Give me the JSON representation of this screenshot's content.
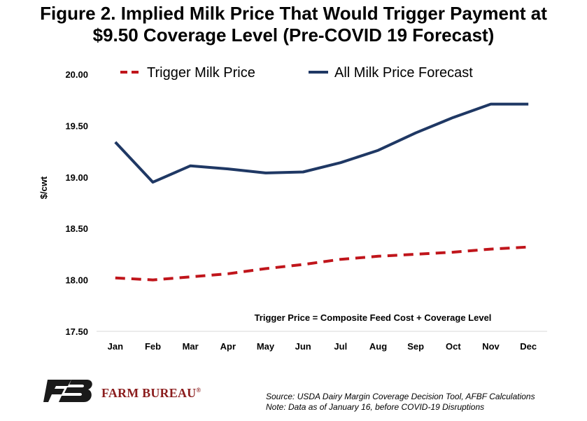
{
  "title_lines": [
    "Figure 2. Implied Milk Price That Would Trigger Payment at",
    "$9.50 Coverage Level (Pre-COVID 19 Forecast)"
  ],
  "chart_data": {
    "type": "line",
    "title": "Figure 2. Implied Milk Price That Would Trigger Payment at $9.50 Coverage Level (Pre-COVID 19 Forecast)",
    "categories": [
      "Jan",
      "Feb",
      "Mar",
      "Apr",
      "May",
      "Jun",
      "Jul",
      "Aug",
      "Sep",
      "Oct",
      "Nov",
      "Dec"
    ],
    "series": [
      {
        "name": "Trigger Milk Price",
        "color": "#c0151b",
        "style": "dashed",
        "values": [
          18.02,
          18.0,
          18.03,
          18.06,
          18.11,
          18.15,
          18.2,
          18.23,
          18.25,
          18.27,
          18.3,
          18.32
        ]
      },
      {
        "name": "All Milk Price Forecast",
        "color": "#1f3864",
        "style": "solid",
        "values": [
          19.34,
          18.95,
          19.11,
          19.08,
          19.04,
          19.05,
          19.14,
          19.26,
          19.43,
          19.58,
          19.71,
          19.71
        ]
      }
    ],
    "xlabel": "",
    "ylabel": "$/cwt",
    "ylim": [
      17.5,
      20.0
    ],
    "yticks": [
      "20.00",
      "19.50",
      "19.00",
      "18.50",
      "18.00",
      "17.50"
    ],
    "ytick_values": [
      20.0,
      19.5,
      19.0,
      18.5,
      18.0,
      17.5
    ],
    "grid": false,
    "legend_position": "top",
    "annotation": "Trigger Price = Composite Feed Cost + Coverage Level"
  },
  "source_lines": [
    "Source: USDA Dairy Margin Coverage Decision Tool, AFBF Calculations",
    "Note: Data as of January 16, before COVID-19 Disruptions"
  ],
  "brand": {
    "name": "FARM BUREAU",
    "mark": "®",
    "logo_color": "#1a1a1a"
  }
}
